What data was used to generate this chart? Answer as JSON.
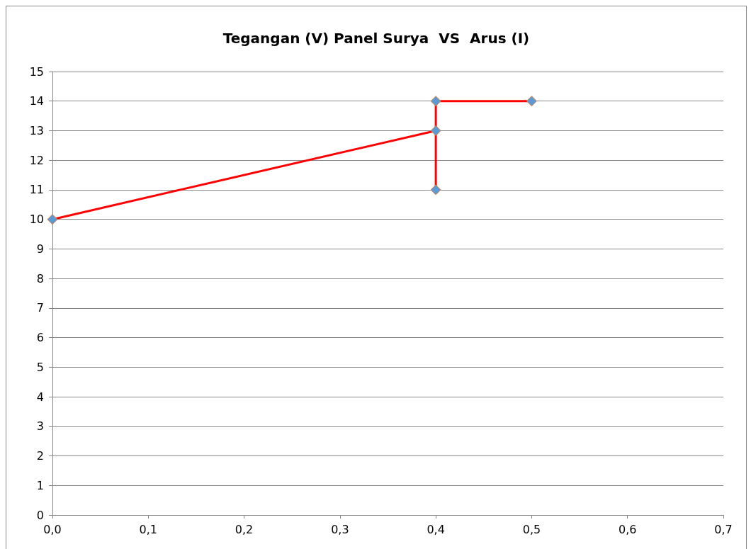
{
  "chart_data": {
    "type": "line",
    "title": "Tegangan (V) Panel Surya  VS  Arus (I)",
    "x": [
      0,
      0.4,
      0.4,
      0.4,
      0.5
    ],
    "series": [
      {
        "color": "#ff0000",
        "values": [
          10,
          13,
          11,
          14,
          14
        ]
      }
    ],
    "marker": "diamond",
    "line_style": "solid",
    "grid": "y",
    "xlim": [
      0,
      0.7
    ],
    "xticks": [
      {
        "value": 0,
        "label": "0,0"
      },
      {
        "value": 0.1,
        "label": "0,1"
      },
      {
        "value": 0.2,
        "label": "0,2"
      },
      {
        "value": 0.3,
        "label": "0,3"
      },
      {
        "value": 0.4,
        "label": "0,4"
      },
      {
        "value": 0.5,
        "label": "0,5"
      },
      {
        "value": 0.6,
        "label": "0,6"
      },
      {
        "value": 0.7,
        "label": "0,7"
      }
    ],
    "ylim": [
      0,
      15
    ],
    "yticks": [
      0,
      1,
      2,
      3,
      4,
      5,
      6,
      7,
      8,
      9,
      10,
      11,
      12,
      13,
      14,
      15
    ]
  }
}
